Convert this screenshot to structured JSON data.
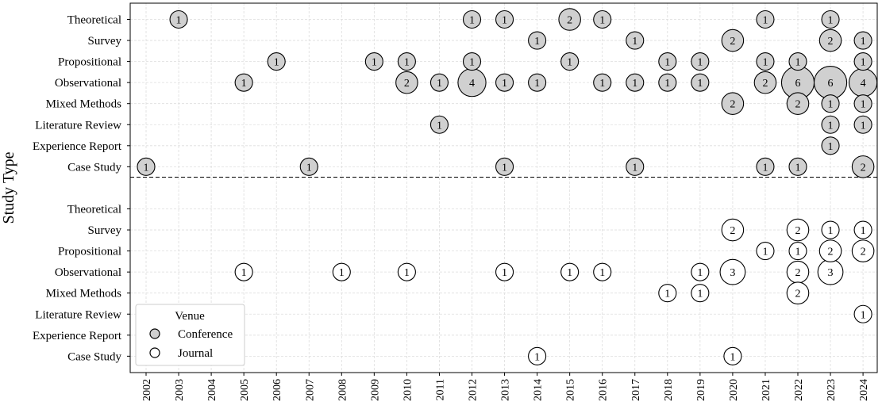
{
  "chart_data": {
    "type": "scatter",
    "ylabel": "Study Type",
    "xlabel": "",
    "x": [
      "2002",
      "2003",
      "2004",
      "2005",
      "2006",
      "2007",
      "2008",
      "2009",
      "2010",
      "2011",
      "2012",
      "2013",
      "2014",
      "2015",
      "2016",
      "2017",
      "2018",
      "2019",
      "2020",
      "2021",
      "2022",
      "2023",
      "2024"
    ],
    "categories": [
      "Theoretical",
      "Survey",
      "Propositional",
      "Observational",
      "Mixed Methods",
      "Literature Review",
      "Experience Report",
      "Case Study"
    ],
    "grid": true,
    "legend": {
      "title": "Venue",
      "placement": "bottom-left",
      "entries": [
        "Conference",
        "Journal"
      ]
    },
    "colors": {
      "conference_fill": "#d0d0d0",
      "journal_fill": "#ffffff",
      "edge": "#000000",
      "grid": "#dddddd"
    },
    "series": [
      {
        "name": "Conference",
        "points": [
          {
            "x": "2003",
            "y": "Theoretical",
            "value": 1
          },
          {
            "x": "2012",
            "y": "Theoretical",
            "value": 1
          },
          {
            "x": "2013",
            "y": "Theoretical",
            "value": 1
          },
          {
            "x": "2015",
            "y": "Theoretical",
            "value": 2
          },
          {
            "x": "2016",
            "y": "Theoretical",
            "value": 1
          },
          {
            "x": "2021",
            "y": "Theoretical",
            "value": 1
          },
          {
            "x": "2023",
            "y": "Theoretical",
            "value": 1
          },
          {
            "x": "2014",
            "y": "Survey",
            "value": 1
          },
          {
            "x": "2017",
            "y": "Survey",
            "value": 1
          },
          {
            "x": "2020",
            "y": "Survey",
            "value": 2
          },
          {
            "x": "2023",
            "y": "Survey",
            "value": 2
          },
          {
            "x": "2024",
            "y": "Survey",
            "value": 1
          },
          {
            "x": "2006",
            "y": "Propositional",
            "value": 1
          },
          {
            "x": "2009",
            "y": "Propositional",
            "value": 1
          },
          {
            "x": "2010",
            "y": "Propositional",
            "value": 1
          },
          {
            "x": "2012",
            "y": "Propositional",
            "value": 1
          },
          {
            "x": "2015",
            "y": "Propositional",
            "value": 1
          },
          {
            "x": "2018",
            "y": "Propositional",
            "value": 1
          },
          {
            "x": "2019",
            "y": "Propositional",
            "value": 1
          },
          {
            "x": "2021",
            "y": "Propositional",
            "value": 1
          },
          {
            "x": "2022",
            "y": "Propositional",
            "value": 1
          },
          {
            "x": "2024",
            "y": "Propositional",
            "value": 1
          },
          {
            "x": "2005",
            "y": "Observational",
            "value": 1
          },
          {
            "x": "2010",
            "y": "Observational",
            "value": 2
          },
          {
            "x": "2011",
            "y": "Observational",
            "value": 1
          },
          {
            "x": "2012",
            "y": "Observational",
            "value": 4
          },
          {
            "x": "2013",
            "y": "Observational",
            "value": 1
          },
          {
            "x": "2014",
            "y": "Observational",
            "value": 1
          },
          {
            "x": "2016",
            "y": "Observational",
            "value": 1
          },
          {
            "x": "2017",
            "y": "Observational",
            "value": 1
          },
          {
            "x": "2018",
            "y": "Observational",
            "value": 1
          },
          {
            "x": "2019",
            "y": "Observational",
            "value": 1
          },
          {
            "x": "2021",
            "y": "Observational",
            "value": 2
          },
          {
            "x": "2022",
            "y": "Observational",
            "value": 6
          },
          {
            "x": "2023",
            "y": "Observational",
            "value": 6
          },
          {
            "x": "2024",
            "y": "Observational",
            "value": 4
          },
          {
            "x": "2020",
            "y": "Mixed Methods",
            "value": 2
          },
          {
            "x": "2022",
            "y": "Mixed Methods",
            "value": 2
          },
          {
            "x": "2023",
            "y": "Mixed Methods",
            "value": 1
          },
          {
            "x": "2024",
            "y": "Mixed Methods",
            "value": 1
          },
          {
            "x": "2011",
            "y": "Literature Review",
            "value": 1
          },
          {
            "x": "2023",
            "y": "Literature Review",
            "value": 1
          },
          {
            "x": "2024",
            "y": "Literature Review",
            "value": 1
          },
          {
            "x": "2023",
            "y": "Experience Report",
            "value": 1
          },
          {
            "x": "2002",
            "y": "Case Study",
            "value": 1
          },
          {
            "x": "2007",
            "y": "Case Study",
            "value": 1
          },
          {
            "x": "2013",
            "y": "Case Study",
            "value": 1
          },
          {
            "x": "2017",
            "y": "Case Study",
            "value": 1
          },
          {
            "x": "2021",
            "y": "Case Study",
            "value": 1
          },
          {
            "x": "2022",
            "y": "Case Study",
            "value": 1
          },
          {
            "x": "2024",
            "y": "Case Study",
            "value": 2
          }
        ]
      },
      {
        "name": "Journal",
        "points": [
          {
            "x": "2020",
            "y": "Survey",
            "value": 2
          },
          {
            "x": "2022",
            "y": "Survey",
            "value": 2
          },
          {
            "x": "2023",
            "y": "Survey",
            "value": 1
          },
          {
            "x": "2024",
            "y": "Survey",
            "value": 1
          },
          {
            "x": "2021",
            "y": "Propositional",
            "value": 1
          },
          {
            "x": "2022",
            "y": "Propositional",
            "value": 1
          },
          {
            "x": "2023",
            "y": "Propositional",
            "value": 2
          },
          {
            "x": "2024",
            "y": "Propositional",
            "value": 2
          },
          {
            "x": "2005",
            "y": "Observational",
            "value": 1
          },
          {
            "x": "2008",
            "y": "Observational",
            "value": 1
          },
          {
            "x": "2010",
            "y": "Observational",
            "value": 1
          },
          {
            "x": "2013",
            "y": "Observational",
            "value": 1
          },
          {
            "x": "2015",
            "y": "Observational",
            "value": 1
          },
          {
            "x": "2016",
            "y": "Observational",
            "value": 1
          },
          {
            "x": "2019",
            "y": "Observational",
            "value": 1
          },
          {
            "x": "2020",
            "y": "Observational",
            "value": 3
          },
          {
            "x": "2022",
            "y": "Observational",
            "value": 2
          },
          {
            "x": "2023",
            "y": "Observational",
            "value": 3
          },
          {
            "x": "2018",
            "y": "Mixed Methods",
            "value": 1
          },
          {
            "x": "2019",
            "y": "Mixed Methods",
            "value": 1
          },
          {
            "x": "2022",
            "y": "Mixed Methods",
            "value": 2
          },
          {
            "x": "2024",
            "y": "Literature Review",
            "value": 1
          },
          {
            "x": "2014",
            "y": "Case Study",
            "value": 1
          },
          {
            "x": "2020",
            "y": "Case Study",
            "value": 1
          }
        ]
      }
    ]
  }
}
